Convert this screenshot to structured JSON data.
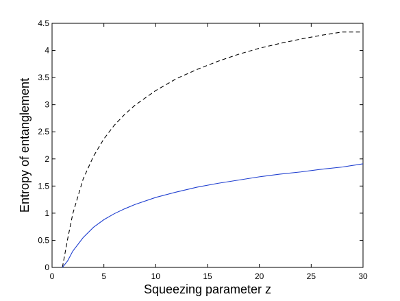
{
  "chart_data": {
    "type": "line",
    "title": "",
    "xlabel": "Squeezing parameter z",
    "ylabel": "Entropy of entanglement",
    "xlim": [
      0,
      30
    ],
    "ylim": [
      0,
      4.5
    ],
    "xticks": [
      0,
      5,
      10,
      15,
      20,
      25,
      30
    ],
    "yticks": [
      0,
      0.5,
      1,
      1.5,
      2,
      2.5,
      3,
      3.5,
      4,
      4.5
    ],
    "xtick_labels": [
      "0",
      "5",
      "10",
      "15",
      "20",
      "25",
      "30"
    ],
    "ytick_labels": [
      "0",
      "0.5",
      "1",
      "1.5",
      "2",
      "2.5",
      "3",
      "3.5",
      "4",
      "4.5"
    ],
    "grid": false,
    "legend": "none",
    "series": [
      {
        "style": "dashed",
        "color": "#000000",
        "x": [
          1,
          1.5,
          2,
          3,
          4,
          5,
          6,
          7,
          8,
          10,
          12,
          14,
          16,
          18,
          20,
          22,
          24,
          26,
          28,
          30
        ],
        "y": [
          0,
          0.52,
          0.99,
          1.63,
          2.05,
          2.37,
          2.62,
          2.82,
          2.99,
          3.26,
          3.48,
          3.65,
          3.8,
          3.93,
          4.04,
          4.13,
          4.21,
          4.28,
          4.34,
          4.34
        ]
      },
      {
        "style": "solid",
        "color": "#1f3fd0",
        "x": [
          1,
          1.5,
          2,
          3,
          4,
          5,
          6,
          7,
          8,
          10,
          12,
          14,
          16,
          18,
          20,
          22,
          24,
          26,
          28,
          30
        ],
        "y": [
          0,
          0.12,
          0.3,
          0.55,
          0.74,
          0.88,
          0.99,
          1.08,
          1.16,
          1.29,
          1.39,
          1.48,
          1.55,
          1.61,
          1.67,
          1.72,
          1.76,
          1.81,
          1.85,
          1.91
        ]
      }
    ]
  }
}
